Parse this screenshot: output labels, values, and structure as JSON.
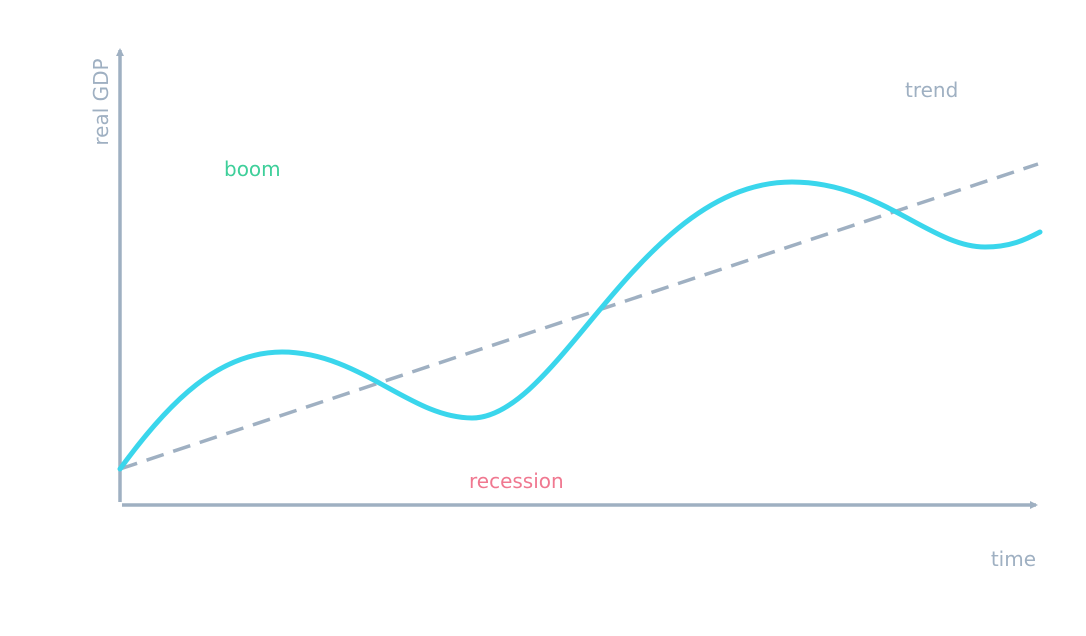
{
  "axes": {
    "y_label": "real GDP",
    "x_label": "time"
  },
  "annotations": {
    "boom": "boom",
    "recession": "recession",
    "trend": "trend"
  }
}
